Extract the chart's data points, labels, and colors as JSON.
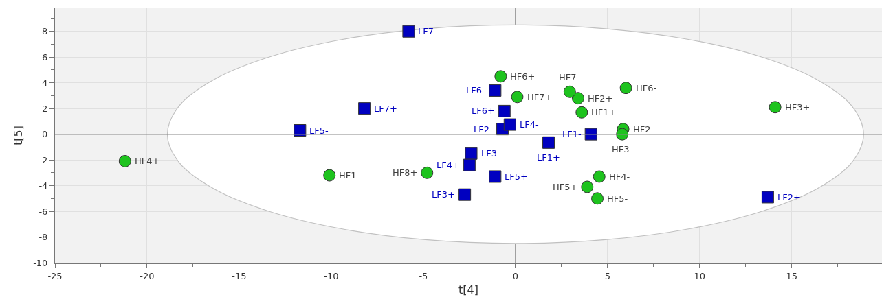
{
  "chart_data": {
    "type": "scatter",
    "xlabel": "t[4]",
    "ylabel": "t[5]",
    "xlim": [
      -25,
      19.9
    ],
    "ylim": [
      -10,
      9.8
    ],
    "xticks": [
      -25,
      -20,
      -15,
      -10,
      -5,
      0,
      5,
      10,
      15
    ],
    "yticks": [
      -10,
      -8,
      -6,
      -4,
      -2,
      0,
      2,
      4,
      6,
      8
    ],
    "grid": true,
    "series": [
      {
        "marker": "circle",
        "color": "#1ec31e",
        "x": [
          -21.2,
          -10.1,
          -4.8,
          -0.8,
          0.1,
          3.4,
          2.95,
          3.6,
          6.0,
          14.1,
          5.85,
          5.8,
          4.55,
          3.9,
          4.45
        ],
        "values": [
          -2.1,
          -3.2,
          -3.0,
          4.5,
          2.9,
          2.8,
          3.3,
          1.7,
          3.6,
          2.1,
          0.4,
          0.0,
          -3.3,
          -4.1,
          -5.0
        ]
      },
      {
        "marker": "square",
        "color": "#0000c0",
        "x": [
          -5.8,
          -8.2,
          -11.7,
          -1.1,
          -0.6,
          -0.7,
          -0.3,
          4.1,
          1.8,
          -2.4,
          -2.5,
          -1.1,
          -2.75,
          13.7
        ],
        "values": [
          8.0,
          2.0,
          0.3,
          3.4,
          1.8,
          0.4,
          0.75,
          0.0,
          -0.65,
          -1.5,
          -2.4,
          -3.3,
          -4.7,
          -4.9
        ]
      },
      {
        "type": "area",
        "color": "#c0c0c0",
        "x": [
          18.9,
          18.26,
          16.37,
          13.36,
          9.45,
          4.89,
          0,
          -4.89,
          -9.45,
          -13.36,
          -16.37,
          -18.26,
          -18.9,
          -18.26,
          -16.37,
          -13.36,
          -9.45,
          -4.89,
          0,
          4.89,
          9.45,
          13.36,
          16.37,
          18.26,
          18.9
        ],
        "values": [
          0,
          2.2,
          4.25,
          6.01,
          7.36,
          8.21,
          8.5,
          8.21,
          7.36,
          6.01,
          4.25,
          2.2,
          0,
          -2.2,
          -4.25,
          -6.01,
          -7.36,
          -8.21,
          -8.5,
          -8.21,
          -7.36,
          -6.01,
          -4.25,
          -2.2,
          0
        ]
      }
    ],
    "annotations": [
      {
        "text": "HF4+",
        "x": -21.2,
        "y": -2.1
      },
      {
        "text": "HF1-",
        "x": -10.1,
        "y": -3.2
      },
      {
        "text": "HF8+",
        "x": -4.8,
        "y": -3.0
      },
      {
        "text": "HF6+",
        "x": -0.8,
        "y": 4.5
      },
      {
        "text": "HF7+",
        "x": 0.1,
        "y": 2.9
      },
      {
        "text": "HF2+",
        "x": 3.4,
        "y": 2.8
      },
      {
        "text": "HF7-",
        "x": 2.95,
        "y": 3.3
      },
      {
        "text": "HF1+",
        "x": 3.6,
        "y": 1.7
      },
      {
        "text": "HF6-",
        "x": 6.0,
        "y": 3.6
      },
      {
        "text": "HF3+",
        "x": 14.1,
        "y": 2.1
      },
      {
        "text": "HF2-",
        "x": 5.85,
        "y": 0.4
      },
      {
        "text": "HF3-",
        "x": 5.8,
        "y": 0.0
      },
      {
        "text": "HF4-",
        "x": 4.55,
        "y": -3.3
      },
      {
        "text": "HF5+",
        "x": 3.9,
        "y": -4.1
      },
      {
        "text": "HF5-",
        "x": 4.45,
        "y": -5.0
      },
      {
        "text": "LF7-",
        "x": -5.8,
        "y": 8.0
      },
      {
        "text": "LF7+",
        "x": -8.2,
        "y": 2.0
      },
      {
        "text": "LF5-",
        "x": -11.7,
        "y": 0.3
      },
      {
        "text": "LF6-",
        "x": -1.1,
        "y": 3.4
      },
      {
        "text": "LF6+",
        "x": -0.6,
        "y": 1.8
      },
      {
        "text": "LF2-",
        "x": -0.7,
        "y": 0.4
      },
      {
        "text": "LF4-",
        "x": -0.3,
        "y": 0.75
      },
      {
        "text": "LF1-",
        "x": 4.1,
        "y": 0.0
      },
      {
        "text": "LF1+",
        "x": 1.8,
        "y": -0.65
      },
      {
        "text": "LF3-",
        "x": -2.4,
        "y": -1.5
      },
      {
        "text": "LF4+",
        "x": -2.5,
        "y": -2.4
      },
      {
        "text": "LF5+",
        "x": -1.1,
        "y": -3.3
      },
      {
        "text": "LF3+",
        "x": -2.75,
        "y": -4.7
      },
      {
        "text": "LF2+",
        "x": 13.7,
        "y": -4.9
      }
    ]
  }
}
